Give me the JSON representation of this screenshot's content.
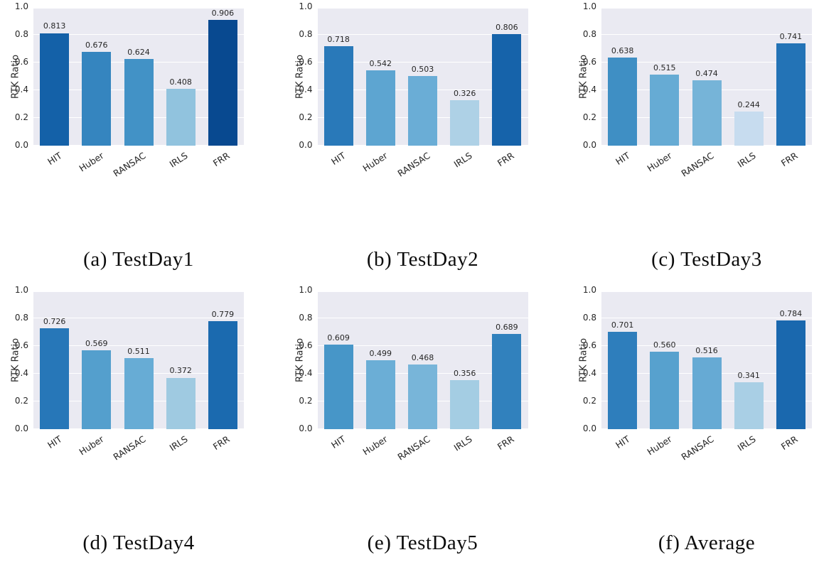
{
  "figure": {
    "ylabel": "RTK Ratio",
    "categories": [
      "HIT",
      "Huber",
      "RANSAC",
      "IRLS",
      "FRR"
    ],
    "yticks": [
      "0.0",
      "0.2",
      "0.4",
      "0.6",
      "0.8",
      "1.0"
    ],
    "ytick_values": [
      0.0,
      0.2,
      0.4,
      0.6,
      0.8,
      1.0
    ],
    "ylim": [
      0,
      1.0
    ],
    "grid": true,
    "plot_bg": "#eaeaf2",
    "grid_color": "#ffffff",
    "text_color": "#262626",
    "palette_name": "Blues",
    "palette_stops": [
      "#f7fbff",
      "#deebf7",
      "#c6dbef",
      "#9ecae1",
      "#6baed6",
      "#4292c6",
      "#2171b5",
      "#08519c",
      "#08306b"
    ]
  },
  "chart_data": [
    {
      "type": "bar",
      "caption": "(a) TestDay1",
      "title": "",
      "xlabel": "",
      "ylabel": "RTK Ratio",
      "ylim": [
        0,
        1.0
      ],
      "categories": [
        "HIT",
        "Huber",
        "RANSAC",
        "IRLS",
        "FRR"
      ],
      "values": [
        0.813,
        0.676,
        0.624,
        0.408,
        0.906
      ],
      "value_labels": [
        "0.813",
        "0.676",
        "0.624",
        "0.408",
        "0.906"
      ]
    },
    {
      "type": "bar",
      "caption": "(b) TestDay2",
      "title": "",
      "xlabel": "",
      "ylabel": "RTK Ratio",
      "ylim": [
        0,
        1.0
      ],
      "categories": [
        "HIT",
        "Huber",
        "RANSAC",
        "IRLS",
        "FRR"
      ],
      "values": [
        0.718,
        0.542,
        0.503,
        0.326,
        0.806
      ],
      "value_labels": [
        "0.718",
        "0.542",
        "0.503",
        "0.326",
        "0.806"
      ]
    },
    {
      "type": "bar",
      "caption": "(c) TestDay3",
      "title": "",
      "xlabel": "",
      "ylabel": "RTK Ratio",
      "ylim": [
        0,
        1.0
      ],
      "categories": [
        "HIT",
        "Huber",
        "RANSAC",
        "IRLS",
        "FRR"
      ],
      "values": [
        0.638,
        0.515,
        0.474,
        0.244,
        0.741
      ],
      "value_labels": [
        "0.638",
        "0.515",
        "0.474",
        "0.244",
        "0.741"
      ]
    },
    {
      "type": "bar",
      "caption": "(d) TestDay4",
      "title": "",
      "xlabel": "",
      "ylabel": "RTK Ratio",
      "ylim": [
        0,
        1.0
      ],
      "categories": [
        "HIT",
        "Huber",
        "RANSAC",
        "IRLS",
        "FRR"
      ],
      "values": [
        0.726,
        0.569,
        0.511,
        0.372,
        0.779
      ],
      "value_labels": [
        "0.726",
        "0.569",
        "0.511",
        "0.372",
        "0.779"
      ]
    },
    {
      "type": "bar",
      "caption": "(e) TestDay5",
      "title": "",
      "xlabel": "",
      "ylabel": "RTK Ratio",
      "ylim": [
        0,
        1.0
      ],
      "categories": [
        "HIT",
        "Huber",
        "RANSAC",
        "IRLS",
        "FRR"
      ],
      "values": [
        0.609,
        0.499,
        0.468,
        0.356,
        0.689
      ],
      "value_labels": [
        "0.609",
        "0.499",
        "0.468",
        "0.356",
        "0.689"
      ]
    },
    {
      "type": "bar",
      "caption": "(f) Average",
      "title": "",
      "xlabel": "",
      "ylabel": "RTK Ratio",
      "ylim": [
        0,
        1.0
      ],
      "categories": [
        "HIT",
        "Huber",
        "RANSAC",
        "IRLS",
        "FRR"
      ],
      "values": [
        0.701,
        0.56,
        0.516,
        0.341,
        0.784
      ],
      "value_labels": [
        "0.701",
        "0.560",
        "0.516",
        "0.341",
        "0.784"
      ]
    }
  ]
}
